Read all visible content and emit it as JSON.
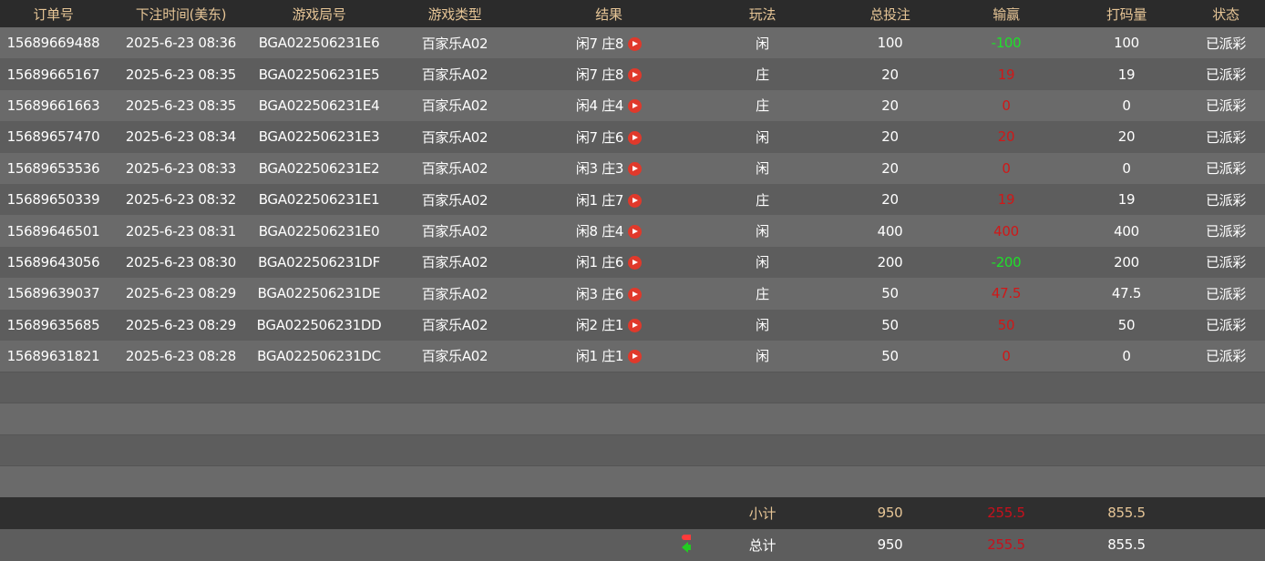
{
  "columns": [
    "订单号",
    "下注时间(美东)",
    "游戏局号",
    "游戏类型",
    "结果",
    "玩法",
    "总投注",
    "输赢",
    "打码量",
    "状态"
  ],
  "rows": [
    {
      "id": "15689669488",
      "time": "2025-6-23 08:36",
      "round": "BGA022506231E6",
      "game": "百家乐A02",
      "result": "闲7 庄8",
      "bet_type": "闲",
      "total_bet": "100",
      "win_loss": "-100",
      "turnover": "100",
      "status": "已派彩"
    },
    {
      "id": "15689665167",
      "time": "2025-6-23 08:35",
      "round": "BGA022506231E5",
      "game": "百家乐A02",
      "result": "闲7 庄8",
      "bet_type": "庄",
      "total_bet": "20",
      "win_loss": "19",
      "turnover": "19",
      "status": "已派彩"
    },
    {
      "id": "15689661663",
      "time": "2025-6-23 08:35",
      "round": "BGA022506231E4",
      "game": "百家乐A02",
      "result": "闲4 庄4",
      "bet_type": "庄",
      "total_bet": "20",
      "win_loss": "0",
      "turnover": "0",
      "status": "已派彩"
    },
    {
      "id": "15689657470",
      "time": "2025-6-23 08:34",
      "round": "BGA022506231E3",
      "game": "百家乐A02",
      "result": "闲7 庄6",
      "bet_type": "闲",
      "total_bet": "20",
      "win_loss": "20",
      "turnover": "20",
      "status": "已派彩"
    },
    {
      "id": "15689653536",
      "time": "2025-6-23 08:33",
      "round": "BGA022506231E2",
      "game": "百家乐A02",
      "result": "闲3 庄3",
      "bet_type": "闲",
      "total_bet": "20",
      "win_loss": "0",
      "turnover": "0",
      "status": "已派彩"
    },
    {
      "id": "15689650339",
      "time": "2025-6-23 08:32",
      "round": "BGA022506231E1",
      "game": "百家乐A02",
      "result": "闲1 庄7",
      "bet_type": "庄",
      "total_bet": "20",
      "win_loss": "19",
      "turnover": "19",
      "status": "已派彩"
    },
    {
      "id": "15689646501",
      "time": "2025-6-23 08:31",
      "round": "BGA022506231E0",
      "game": "百家乐A02",
      "result": "闲8 庄4",
      "bet_type": "闲",
      "total_bet": "400",
      "win_loss": "400",
      "turnover": "400",
      "status": "已派彩"
    },
    {
      "id": "15689643056",
      "time": "2025-6-23 08:30",
      "round": "BGA022506231DF",
      "game": "百家乐A02",
      "result": "闲1 庄6",
      "bet_type": "闲",
      "total_bet": "200",
      "win_loss": "-200",
      "turnover": "200",
      "status": "已派彩"
    },
    {
      "id": "15689639037",
      "time": "2025-6-23 08:29",
      "round": "BGA022506231DE",
      "game": "百家乐A02",
      "result": "闲3 庄6",
      "bet_type": "庄",
      "total_bet": "50",
      "win_loss": "47.5",
      "turnover": "47.5",
      "status": "已派彩"
    },
    {
      "id": "15689635685",
      "time": "2025-6-23 08:29",
      "round": "BGA022506231DD",
      "game": "百家乐A02",
      "result": "闲2 庄1",
      "bet_type": "闲",
      "total_bet": "50",
      "win_loss": "50",
      "turnover": "50",
      "status": "已派彩"
    },
    {
      "id": "15689631821",
      "time": "2025-6-23 08:28",
      "round": "BGA022506231DC",
      "game": "百家乐A02",
      "result": "闲1 庄1",
      "bet_type": "闲",
      "total_bet": "50",
      "win_loss": "0",
      "turnover": "0",
      "status": "已派彩"
    }
  ],
  "subtotal": {
    "label": "小计",
    "total_bet": "950",
    "win_loss": "255.5",
    "turnover": "855.5"
  },
  "total": {
    "label": "总计",
    "total_bet": "950",
    "win_loss": "255.5",
    "turnover": "855.5",
    "icon": "refresh-swap-icon"
  },
  "colors": {
    "header_text": "#e6c596",
    "loss": "#1fe02a",
    "win": "#d01818",
    "play_icon": "#e0392b"
  }
}
